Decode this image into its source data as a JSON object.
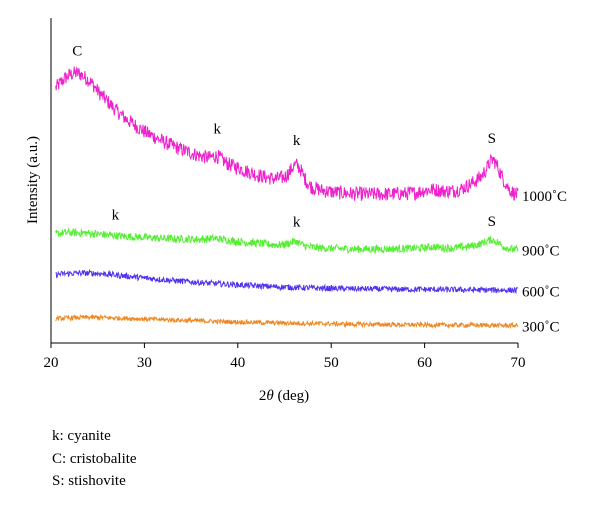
{
  "chart_data": {
    "type": "line",
    "xlabel_pre": "2",
    "xlabel_theta": "θ",
    "xlabel_post": " (deg)",
    "ylabel": "Intensity (a.u.)",
    "xlim": [
      20,
      70
    ],
    "xticks": [
      "20",
      "30",
      "40",
      "50",
      "60",
      "70"
    ],
    "yticks_shown": false,
    "grid": false,
    "series": [
      {
        "name": "1000˚C",
        "color": "#ee22cc",
        "points": [
          [
            20.5,
            0.785
          ],
          [
            21.0,
            0.8
          ],
          [
            21.5,
            0.815
          ],
          [
            22.0,
            0.825
          ],
          [
            22.5,
            0.83
          ],
          [
            23.0,
            0.83
          ],
          [
            23.5,
            0.82
          ],
          [
            24.0,
            0.81
          ],
          [
            24.5,
            0.795
          ],
          [
            25.0,
            0.775
          ],
          [
            26.0,
            0.745
          ],
          [
            27.0,
            0.715
          ],
          [
            28.0,
            0.69
          ],
          [
            29.0,
            0.67
          ],
          [
            30.0,
            0.65
          ],
          [
            31.0,
            0.635
          ],
          [
            32.0,
            0.62
          ],
          [
            33.0,
            0.607
          ],
          [
            34.0,
            0.595
          ],
          [
            35.0,
            0.585
          ],
          [
            36.0,
            0.575
          ],
          [
            37.0,
            0.57
          ],
          [
            37.5,
            0.575
          ],
          [
            38.0,
            0.572
          ],
          [
            38.5,
            0.56
          ],
          [
            39.0,
            0.55
          ],
          [
            40.0,
            0.54
          ],
          [
            41.0,
            0.528
          ],
          [
            42.0,
            0.518
          ],
          [
            43.0,
            0.51
          ],
          [
            44.0,
            0.505
          ],
          [
            45.0,
            0.51
          ],
          [
            45.5,
            0.525
          ],
          [
            46.0,
            0.545
          ],
          [
            46.3,
            0.548
          ],
          [
            46.7,
            0.535
          ],
          [
            47.0,
            0.515
          ],
          [
            47.5,
            0.49
          ],
          [
            48.0,
            0.478
          ],
          [
            49.0,
            0.47
          ],
          [
            50.0,
            0.465
          ],
          [
            52.0,
            0.46
          ],
          [
            54.0,
            0.458
          ],
          [
            56.0,
            0.458
          ],
          [
            58.0,
            0.46
          ],
          [
            59.0,
            0.462
          ],
          [
            60.0,
            0.47
          ],
          [
            61.0,
            0.472
          ],
          [
            62.0,
            0.468
          ],
          [
            63.0,
            0.468
          ],
          [
            64.0,
            0.475
          ],
          [
            65.0,
            0.49
          ],
          [
            66.0,
            0.51
          ],
          [
            66.5,
            0.53
          ],
          [
            67.0,
            0.555
          ],
          [
            67.3,
            0.565
          ],
          [
            67.6,
            0.555
          ],
          [
            68.0,
            0.53
          ],
          [
            68.5,
            0.5
          ],
          [
            69.0,
            0.475
          ],
          [
            69.5,
            0.462
          ],
          [
            70.0,
            0.455
          ]
        ],
        "labels": [
          {
            "text": "C",
            "x": 22.8,
            "y": 0.885
          },
          {
            "text": "k",
            "x": 37.8,
            "y": 0.645
          },
          {
            "text": "k",
            "x": 46.3,
            "y": 0.61
          },
          {
            "text": "S",
            "x": 67.2,
            "y": 0.615
          }
        ]
      },
      {
        "name": "900˚C",
        "color": "#55ee33",
        "points": [
          [
            20.5,
            0.335
          ],
          [
            21.0,
            0.338
          ],
          [
            22.0,
            0.34
          ],
          [
            23.0,
            0.339
          ],
          [
            24.0,
            0.338
          ],
          [
            25.0,
            0.335
          ],
          [
            26.0,
            0.333
          ],
          [
            27.0,
            0.33
          ],
          [
            28.0,
            0.328
          ],
          [
            30.0,
            0.325
          ],
          [
            32.0,
            0.322
          ],
          [
            34.0,
            0.32
          ],
          [
            36.0,
            0.319
          ],
          [
            37.5,
            0.322
          ],
          [
            38.5,
            0.318
          ],
          [
            40.0,
            0.312
          ],
          [
            42.0,
            0.307
          ],
          [
            44.0,
            0.302
          ],
          [
            45.0,
            0.303
          ],
          [
            45.8,
            0.31
          ],
          [
            46.2,
            0.313
          ],
          [
            46.7,
            0.305
          ],
          [
            47.5,
            0.296
          ],
          [
            49.0,
            0.292
          ],
          [
            51.0,
            0.29
          ],
          [
            53.0,
            0.289
          ],
          [
            55.0,
            0.289
          ],
          [
            57.0,
            0.29
          ],
          [
            59.0,
            0.291
          ],
          [
            60.0,
            0.293
          ],
          [
            61.0,
            0.296
          ],
          [
            62.0,
            0.293
          ],
          [
            63.0,
            0.292
          ],
          [
            64.0,
            0.295
          ],
          [
            65.0,
            0.298
          ],
          [
            66.0,
            0.305
          ],
          [
            66.6,
            0.313
          ],
          [
            67.2,
            0.318
          ],
          [
            67.8,
            0.31
          ],
          [
            68.5,
            0.296
          ],
          [
            69.2,
            0.289
          ],
          [
            70.0,
            0.287
          ]
        ],
        "labels": [
          {
            "text": "k",
            "x": 26.9,
            "y": 0.38
          },
          {
            "text": "k",
            "x": 46.3,
            "y": 0.358
          },
          {
            "text": "S",
            "x": 67.2,
            "y": 0.36
          }
        ]
      },
      {
        "name": "600˚C",
        "color": "#5533ee",
        "points": [
          [
            20.5,
            0.21
          ],
          [
            21.0,
            0.212
          ],
          [
            22.0,
            0.214
          ],
          [
            23.0,
            0.215
          ],
          [
            24.0,
            0.215
          ],
          [
            25.0,
            0.214
          ],
          [
            26.0,
            0.212
          ],
          [
            27.0,
            0.209
          ],
          [
            28.0,
            0.206
          ],
          [
            30.0,
            0.2
          ],
          [
            32.0,
            0.195
          ],
          [
            34.0,
            0.19
          ],
          [
            36.0,
            0.186
          ],
          [
            38.0,
            0.182
          ],
          [
            40.0,
            0.179
          ],
          [
            42.0,
            0.176
          ],
          [
            44.0,
            0.173
          ],
          [
            46.0,
            0.171
          ],
          [
            48.0,
            0.169
          ],
          [
            50.0,
            0.168
          ],
          [
            52.0,
            0.167
          ],
          [
            55.0,
            0.166
          ],
          [
            58.0,
            0.165
          ],
          [
            60.0,
            0.165
          ],
          [
            62.0,
            0.164
          ],
          [
            64.0,
            0.164
          ],
          [
            66.0,
            0.163
          ],
          [
            68.0,
            0.163
          ],
          [
            70.0,
            0.162
          ]
        ],
        "labels": []
      },
      {
        "name": "300˚C",
        "color": "#ee8822",
        "points": [
          [
            20.5,
            0.075
          ],
          [
            22.0,
            0.077
          ],
          [
            24.0,
            0.079
          ],
          [
            26.0,
            0.078
          ],
          [
            28.0,
            0.076
          ],
          [
            30.0,
            0.074
          ],
          [
            32.0,
            0.072
          ],
          [
            34.0,
            0.07
          ],
          [
            36.0,
            0.068
          ],
          [
            38.0,
            0.066
          ],
          [
            40.0,
            0.065
          ],
          [
            42.0,
            0.063
          ],
          [
            44.0,
            0.062
          ],
          [
            46.0,
            0.061
          ],
          [
            48.0,
            0.06
          ],
          [
            50.0,
            0.059
          ],
          [
            52.0,
            0.058
          ],
          [
            55.0,
            0.057
          ],
          [
            58.0,
            0.056
          ],
          [
            60.0,
            0.056
          ],
          [
            62.0,
            0.055
          ],
          [
            64.0,
            0.055
          ],
          [
            66.0,
            0.055
          ],
          [
            68.0,
            0.054
          ],
          [
            70.0,
            0.054
          ]
        ],
        "labels": []
      }
    ]
  },
  "legend": [
    "k: cyanite",
    "C: cristobalite",
    "S: stishovite"
  ]
}
